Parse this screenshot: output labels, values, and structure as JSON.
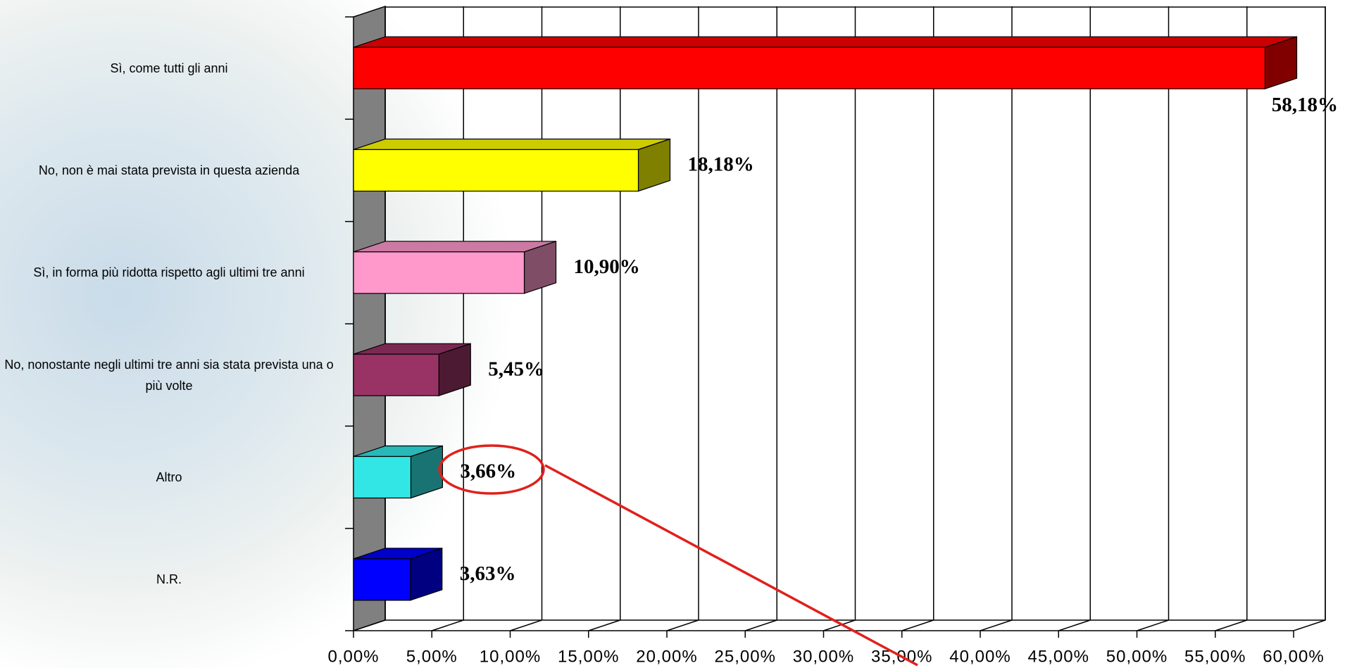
{
  "chart_data": {
    "type": "bar",
    "categories": [
      "Sì, come tutti gli anni",
      "No, non è mai stata prevista in questa azienda",
      "Sì, in forma più ridotta rispetto agli ultimi tre anni",
      "No, nonostante negli ultimi tre anni sia stata prevista una o più volte",
      "Altro",
      "N.R."
    ],
    "values": [
      58.18,
      18.18,
      10.9,
      5.45,
      3.66,
      3.63
    ],
    "value_labels": [
      "58,18%",
      "18,18%",
      "10,90%",
      "5,45%",
      "3,66%",
      "3,63%"
    ],
    "colors": [
      "#ff0000",
      "#ffff00",
      "#ff99cc",
      "#993366",
      "#33e6e6",
      "#0000ff"
    ],
    "xlim": [
      0,
      60
    ],
    "xticks": [
      {
        "value": 0,
        "label": "0,00%"
      },
      {
        "value": 5,
        "label": "5,00%"
      },
      {
        "value": 10,
        "label": "10,00%"
      },
      {
        "value": 15,
        "label": "15,00%"
      },
      {
        "value": 20,
        "label": "20,00%"
      },
      {
        "value": 25,
        "label": "25,00%"
      },
      {
        "value": 30,
        "label": "30,00%"
      },
      {
        "value": 35,
        "label": "35,00%"
      },
      {
        "value": 40,
        "label": "40,00%"
      },
      {
        "value": 45,
        "label": "45,00%"
      },
      {
        "value": 50,
        "label": "50,00%"
      },
      {
        "value": 55,
        "label": "55,00%"
      },
      {
        "value": 60,
        "label": "60,00%"
      }
    ],
    "grid": true
  }
}
